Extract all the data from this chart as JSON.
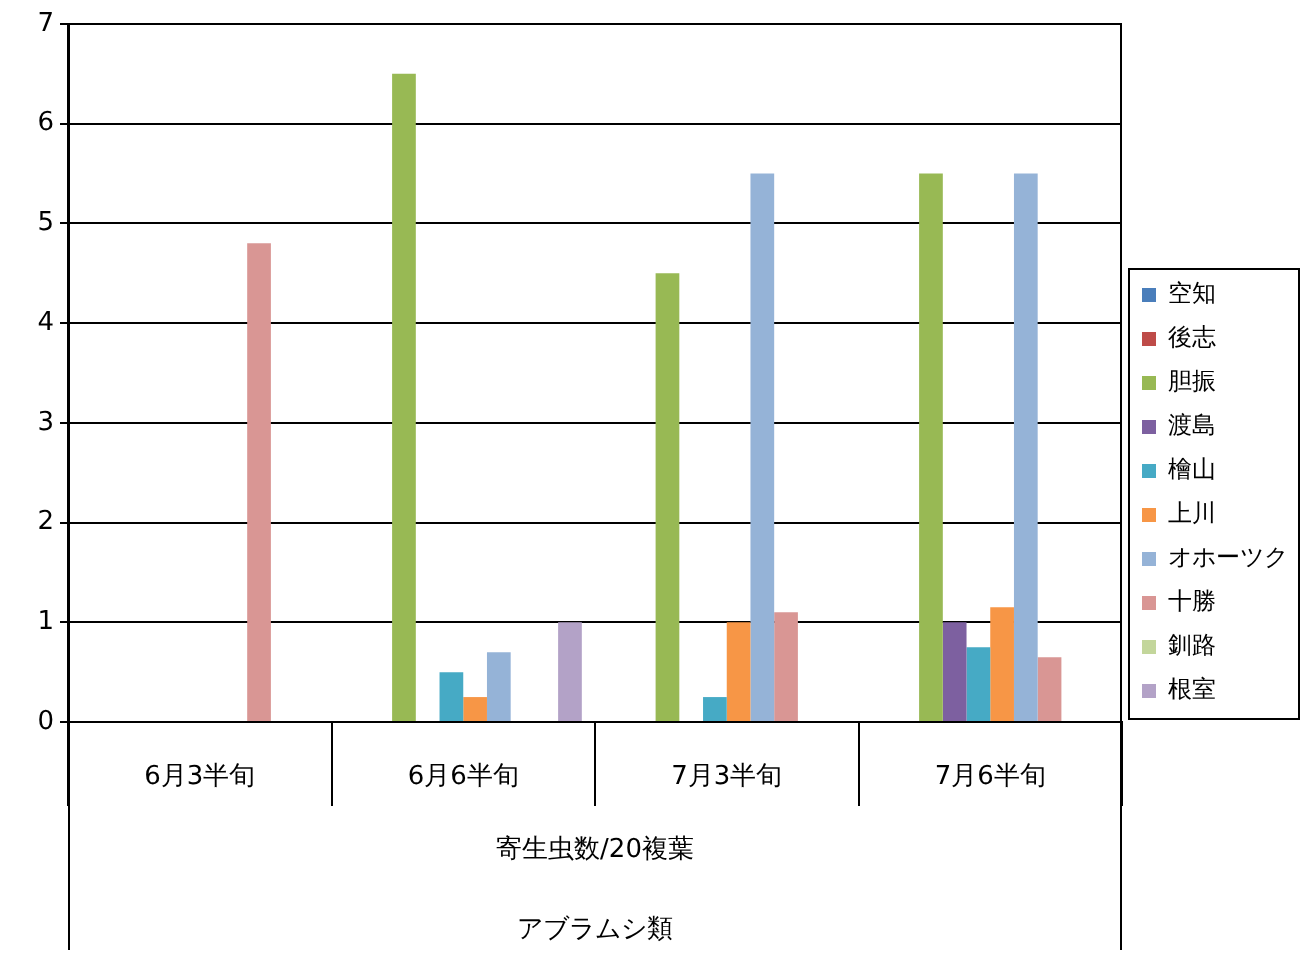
{
  "chart_data": {
    "type": "bar",
    "xlabel": "寄生虫数/20複葉",
    "annotations": [
      "アブラムシ類"
    ],
    "categories": [
      "6月3半旬",
      "6月6半旬",
      "7月3半旬",
      "7月6半旬"
    ],
    "series": [
      {
        "name": "空知",
        "color": "#4a7ebb",
        "values": [
          null,
          null,
          null,
          null
        ]
      },
      {
        "name": "後志",
        "color": "#be4b48",
        "values": [
          null,
          null,
          null,
          null
        ]
      },
      {
        "name": "胆振",
        "color": "#98b954",
        "values": [
          null,
          6.5,
          4.5,
          5.5
        ]
      },
      {
        "name": "渡島",
        "color": "#7d60a0",
        "values": [
          null,
          null,
          null,
          1.0
        ]
      },
      {
        "name": "檜山",
        "color": "#46aac5",
        "values": [
          null,
          0.5,
          0.25,
          0.75
        ]
      },
      {
        "name": "上川",
        "color": "#f79646",
        "values": [
          null,
          0.25,
          1.0,
          1.15
        ]
      },
      {
        "name": "オホーツク",
        "color": "#95b3d7",
        "values": [
          null,
          0.7,
          5.5,
          5.5
        ]
      },
      {
        "name": "十勝",
        "color": "#d99694",
        "values": [
          4.8,
          null,
          1.1,
          0.65
        ]
      },
      {
        "name": "釧路",
        "color": "#c3d69b",
        "values": [
          null,
          null,
          null,
          null
        ]
      },
      {
        "name": "根室",
        "color": "#b3a2c7",
        "values": [
          null,
          1.0,
          null,
          null
        ]
      }
    ],
    "ylim": [
      0,
      7
    ],
    "yticks": [
      0,
      1,
      2,
      3,
      4,
      5,
      6,
      7
    ],
    "grid": "y",
    "legend": "right"
  }
}
